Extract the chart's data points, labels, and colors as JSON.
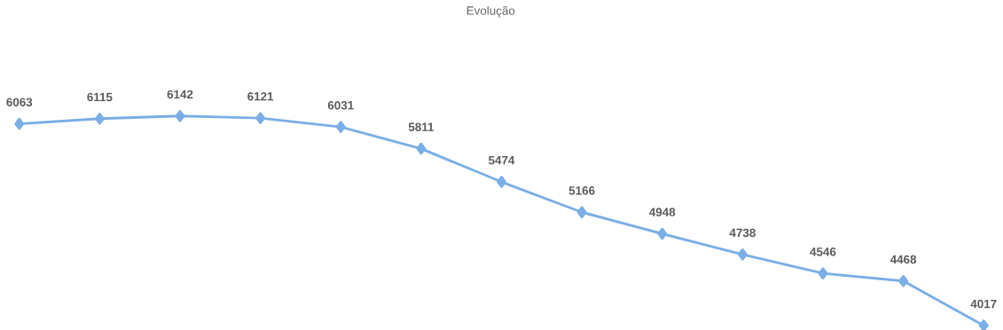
{
  "chart_data": {
    "type": "line",
    "title": "Evolução",
    "categories": [
      null,
      null,
      null,
      null,
      null,
      null,
      null,
      null,
      null,
      null,
      null,
      null,
      null
    ],
    "values": [
      6063,
      6115,
      6142,
      6121,
      6031,
      5811,
      5474,
      5166,
      4948,
      4738,
      4546,
      4468,
      4017
    ],
    "color": "#7aaee6",
    "marker": "diamond",
    "data_labels": true
  }
}
